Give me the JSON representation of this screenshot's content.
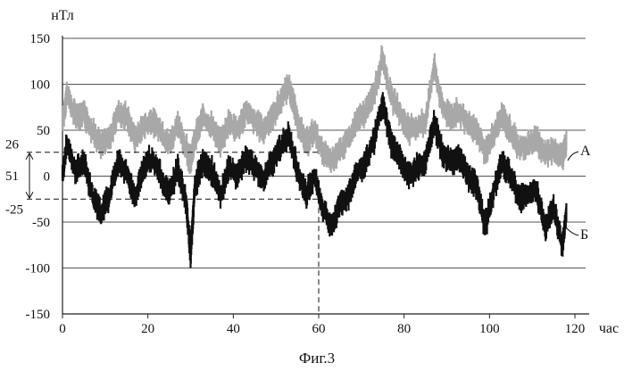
{
  "chart_data": {
    "type": "line",
    "ylabel": "нТл",
    "xlabel": "час",
    "caption": "Фиг.3",
    "xlim": [
      0,
      120
    ],
    "ylim": [
      -150,
      150
    ],
    "x_ticks": [
      "0",
      "20",
      "40",
      "60",
      "80",
      "100",
      "120"
    ],
    "y_ticks": [
      "150",
      "100",
      "50",
      "0",
      "-50",
      "-100",
      "-150"
    ],
    "grid": "horizontal",
    "annotations": {
      "upper_level": {
        "value": 26,
        "label": "26"
      },
      "lower_level": {
        "value": -25,
        "label": "-25"
      },
      "range": {
        "label": "51"
      },
      "marker_x": 60
    },
    "series": [
      {
        "name": "А",
        "color": "#a8a8a8",
        "x": [
          0,
          1,
          3,
          5,
          7,
          9,
          11,
          13,
          15,
          17,
          19,
          21,
          23,
          25,
          27,
          29,
          30,
          31,
          33,
          35,
          37,
          39,
          41,
          43,
          45,
          47,
          49,
          51,
          53,
          55,
          57,
          59,
          61,
          63,
          65,
          67,
          69,
          71,
          73,
          75,
          77,
          79,
          81,
          83,
          85,
          87,
          89,
          91,
          93,
          95,
          97,
          99,
          101,
          103,
          105,
          107,
          109,
          111,
          113,
          115,
          117,
          118
        ],
        "y": [
          60,
          90,
          65,
          70,
          50,
          35,
          40,
          70,
          65,
          40,
          55,
          60,
          50,
          35,
          55,
          30,
          15,
          40,
          65,
          55,
          35,
          60,
          50,
          70,
          60,
          50,
          65,
          80,
          100,
          60,
          35,
          50,
          25,
          15,
          30,
          40,
          60,
          70,
          90,
          130,
          85,
          70,
          50,
          55,
          60,
          120,
          75,
          65,
          70,
          55,
          50,
          25,
          45,
          65,
          50,
          30,
          35,
          40,
          25,
          30,
          20,
          35
        ]
      },
      {
        "name": "Б",
        "color": "#111111",
        "x": [
          0,
          1,
          3,
          5,
          7,
          9,
          11,
          13,
          15,
          17,
          19,
          21,
          23,
          25,
          27,
          29,
          30,
          31,
          33,
          35,
          37,
          39,
          41,
          43,
          45,
          47,
          49,
          51,
          53,
          55,
          57,
          59,
          61,
          63,
          65,
          67,
          69,
          71,
          73,
          75,
          77,
          79,
          81,
          83,
          85,
          87,
          89,
          91,
          93,
          95,
          97,
          99,
          101,
          103,
          105,
          107,
          109,
          111,
          113,
          115,
          117,
          118
        ],
        "y": [
          0,
          35,
          5,
          15,
          -20,
          -40,
          -20,
          15,
          5,
          -25,
          10,
          20,
          0,
          -20,
          10,
          -30,
          -85,
          -10,
          15,
          5,
          -20,
          10,
          0,
          20,
          10,
          -5,
          15,
          30,
          45,
          5,
          -20,
          0,
          -35,
          -55,
          -30,
          -20,
          5,
          15,
          40,
          80,
          35,
          20,
          0,
          10,
          15,
          60,
          25,
          15,
          20,
          0,
          -10,
          -55,
          -15,
          15,
          0,
          -25,
          -20,
          -15,
          -55,
          -35,
          -75,
          -40
        ]
      }
    ]
  }
}
